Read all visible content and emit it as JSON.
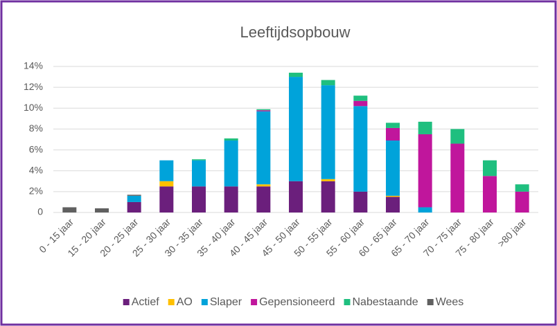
{
  "chart_data": {
    "type": "bar",
    "stacked": true,
    "title": "Leeftijdsopbouw",
    "categories": [
      "0 - 15 jaar",
      "15 - 20 jaar",
      "20 - 25 jaar",
      "25 - 30 jaar",
      "30 - 35 jaar",
      "35 - 40 jaar",
      "40 - 45 jaar",
      "45 - 50 jaar",
      "50 - 55 jaar",
      "55 - 60 jaar",
      "60 - 65 jaar",
      "65 - 70 jaar",
      "70 - 75 jaar",
      "75 - 80 jaar",
      ">80 jaar"
    ],
    "series": [
      {
        "name": "Actief",
        "color": "#6b1f7c",
        "values": [
          0,
          0,
          1.0,
          2.5,
          2.5,
          2.5,
          2.5,
          3.0,
          3.0,
          2.0,
          1.5,
          0,
          0,
          0,
          0
        ]
      },
      {
        "name": "AO",
        "color": "#ffc000",
        "values": [
          0,
          0,
          0,
          0.5,
          0,
          0,
          0.2,
          0,
          0.2,
          0,
          0.1,
          0,
          0,
          0,
          0
        ]
      },
      {
        "name": "Slaper",
        "color": "#00a3da",
        "values": [
          0,
          0,
          0.6,
          2.0,
          2.5,
          4.4,
          7.0,
          10.0,
          9.0,
          8.2,
          5.3,
          0.5,
          0,
          0,
          0
        ]
      },
      {
        "name": "Gepensioneerd",
        "color": "#c0169c",
        "values": [
          0,
          0,
          0,
          0,
          0,
          0,
          0.1,
          0,
          0,
          0.5,
          1.2,
          7.0,
          6.6,
          3.5,
          2.0
        ]
      },
      {
        "name": "Nabestaande",
        "color": "#1fbf7f",
        "values": [
          0,
          0,
          0,
          0,
          0.1,
          0.2,
          0.1,
          0.4,
          0.5,
          0.5,
          0.5,
          1.2,
          1.4,
          1.5,
          0.7
        ]
      },
      {
        "name": "Wees",
        "color": "#606060",
        "values": [
          0.5,
          0.4,
          0.1,
          0,
          0,
          0,
          0,
          0,
          0,
          0,
          0,
          0,
          0,
          0,
          0
        ]
      }
    ],
    "ylim": [
      0,
      14
    ],
    "yticks": [
      0,
      {
        "value": 2,
        "label": "2%"
      },
      {
        "value": 4,
        "label": "4%"
      },
      {
        "value": 6,
        "label": "6%"
      },
      {
        "value": 8,
        "label": "8%"
      },
      {
        "value": 10,
        "label": "10%"
      },
      {
        "value": 12,
        "label": "12%"
      },
      {
        "value": 14,
        "label": "14%"
      }
    ],
    "grid": true,
    "legend": "bottom"
  }
}
